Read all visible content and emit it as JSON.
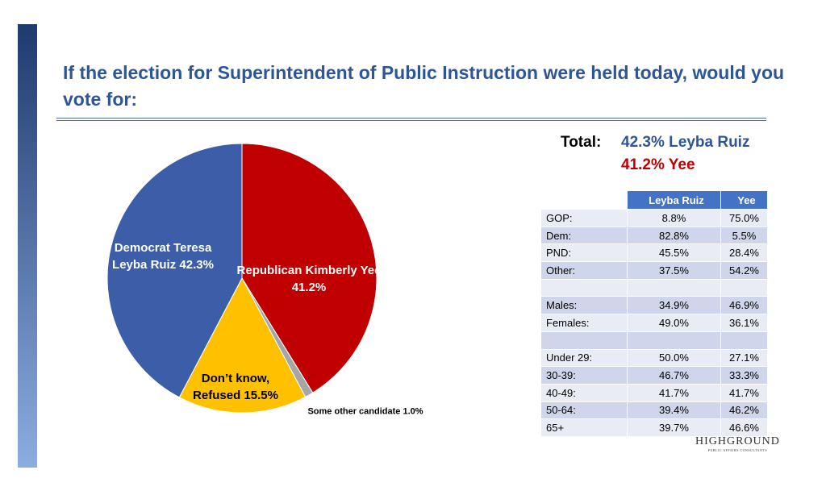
{
  "title": "If the election for Superintendent of Public Instruction were held today, would you vote for:",
  "chart_data": {
    "type": "pie",
    "categories": [
      "Republican Kimberly Yee",
      "Some other candidate",
      "Don’t know, Refused",
      "Democrat Teresa Leyba Ruiz"
    ],
    "values": [
      41.2,
      1.0,
      15.5,
      42.3
    ],
    "value_labels": [
      "41.2%",
      "1.0%",
      "15.5%",
      "42.3%"
    ],
    "colors": [
      "#c00000",
      "#a6a6a6",
      "#ffc000",
      "#3c5ea8"
    ]
  },
  "total": {
    "label": "Total:",
    "lines": [
      "42.3% Leyba Ruiz",
      "41.2% Yee"
    ]
  },
  "table": {
    "headers": [
      "Leyba Ruiz",
      "Yee"
    ],
    "groups": [
      [
        [
          "GOP:",
          "8.8%",
          "75.0%"
        ],
        [
          "Dem:",
          "82.8%",
          "5.5%"
        ],
        [
          "PND:",
          "45.5%",
          "28.4%"
        ],
        [
          "Other:",
          "37.5%",
          "54.2%"
        ]
      ],
      [
        [
          "Males:",
          "34.9%",
          "46.9%"
        ],
        [
          "Females:",
          "49.0%",
          "36.1%"
        ]
      ],
      [
        [
          "Under 29:",
          "50.0%",
          "27.1%"
        ],
        [
          "30-39:",
          "46.7%",
          "33.3%"
        ],
        [
          "40-49:",
          "41.7%",
          "41.7%"
        ],
        [
          "50-64:",
          "39.4%",
          "46.2%"
        ],
        [
          "65+",
          "39.7%",
          "46.6%"
        ]
      ]
    ]
  },
  "logo": {
    "name": "HIGHGROUND",
    "tagline": "PUBLIC AFFAIRS CONSULTANTS"
  }
}
